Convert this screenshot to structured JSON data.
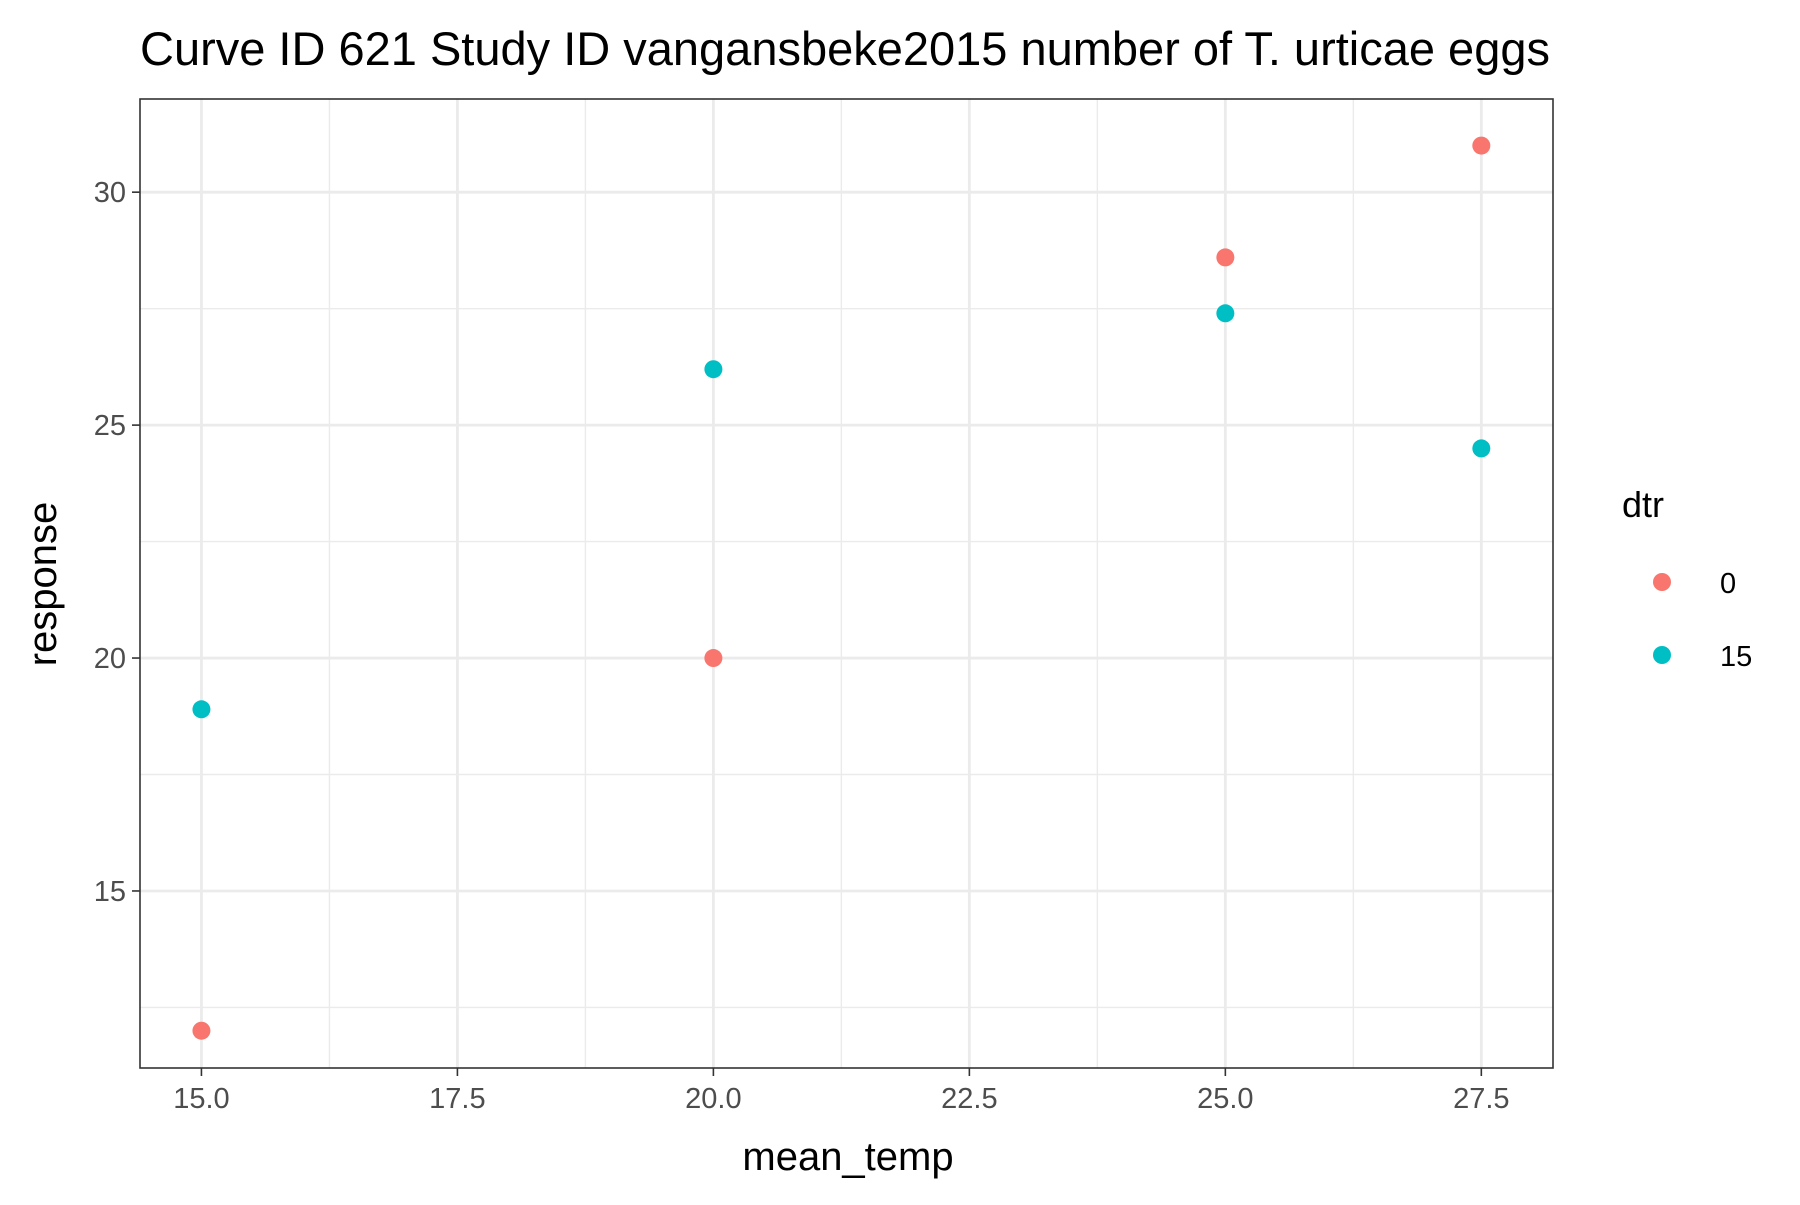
{
  "chart_data": {
    "type": "scatter",
    "title": "Curve ID 621 Study ID vangansbeke2015 number of T. urticae eggs",
    "xlabel": "mean_temp",
    "ylabel": "response",
    "xlim": [
      14.4,
      28.2
    ],
    "ylim": [
      11.2,
      32.0
    ],
    "x_ticks": [
      "15.0",
      "17.5",
      "20.0",
      "22.5",
      "25.0",
      "27.5"
    ],
    "x_tick_values": [
      15.0,
      17.5,
      20.0,
      22.5,
      25.0,
      27.5
    ],
    "y_ticks": [
      "15",
      "20",
      "25",
      "30"
    ],
    "y_tick_values": [
      15,
      20,
      25,
      30
    ],
    "grid": true,
    "legend": {
      "title": "dtr",
      "placement": "right"
    },
    "series": [
      {
        "name": "0",
        "color": "#F8766D",
        "points": [
          {
            "x": 15.0,
            "y": 12.0
          },
          {
            "x": 20.0,
            "y": 20.0
          },
          {
            "x": 25.0,
            "y": 28.6
          },
          {
            "x": 27.5,
            "y": 31.0
          }
        ]
      },
      {
        "name": "15",
        "color": "#00BFC4",
        "points": [
          {
            "x": 15.0,
            "y": 18.9
          },
          {
            "x": 20.0,
            "y": 26.2
          },
          {
            "x": 25.0,
            "y": 27.4
          },
          {
            "x": 27.5,
            "y": 24.5
          }
        ]
      }
    ]
  }
}
